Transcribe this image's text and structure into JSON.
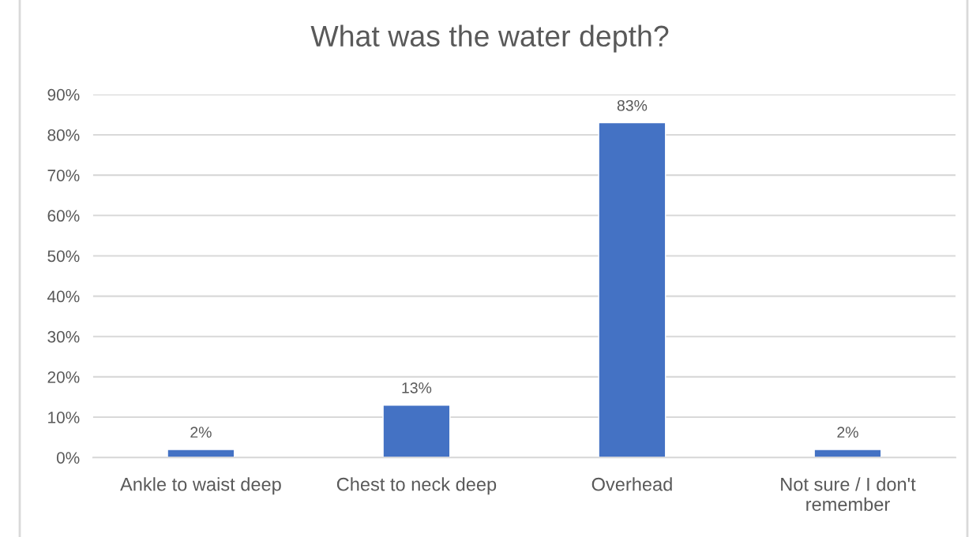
{
  "chart_data": {
    "type": "bar",
    "title": "What was the water depth?",
    "categories": [
      "Ankle to waist deep",
      "Chest to neck deep",
      "Overhead",
      "Not sure / I don't\nremember"
    ],
    "values": [
      2,
      13,
      83,
      2
    ],
    "color": "#4472c4",
    "value_labels": [
      "2%",
      "13%",
      "83%",
      "2%"
    ],
    "ylim": [
      0,
      90
    ],
    "yticks": [
      {
        "value": 0,
        "label": "0%"
      },
      {
        "value": 10,
        "label": "10%"
      },
      {
        "value": 20,
        "label": "20%"
      },
      {
        "value": 30,
        "label": "30%"
      },
      {
        "value": 40,
        "label": "40%"
      },
      {
        "value": 50,
        "label": "50%"
      },
      {
        "value": 60,
        "label": "60%"
      },
      {
        "value": 70,
        "label": "70%"
      },
      {
        "value": 80,
        "label": "80%"
      },
      {
        "value": 90,
        "label": "90%"
      }
    ],
    "grid": "y"
  }
}
